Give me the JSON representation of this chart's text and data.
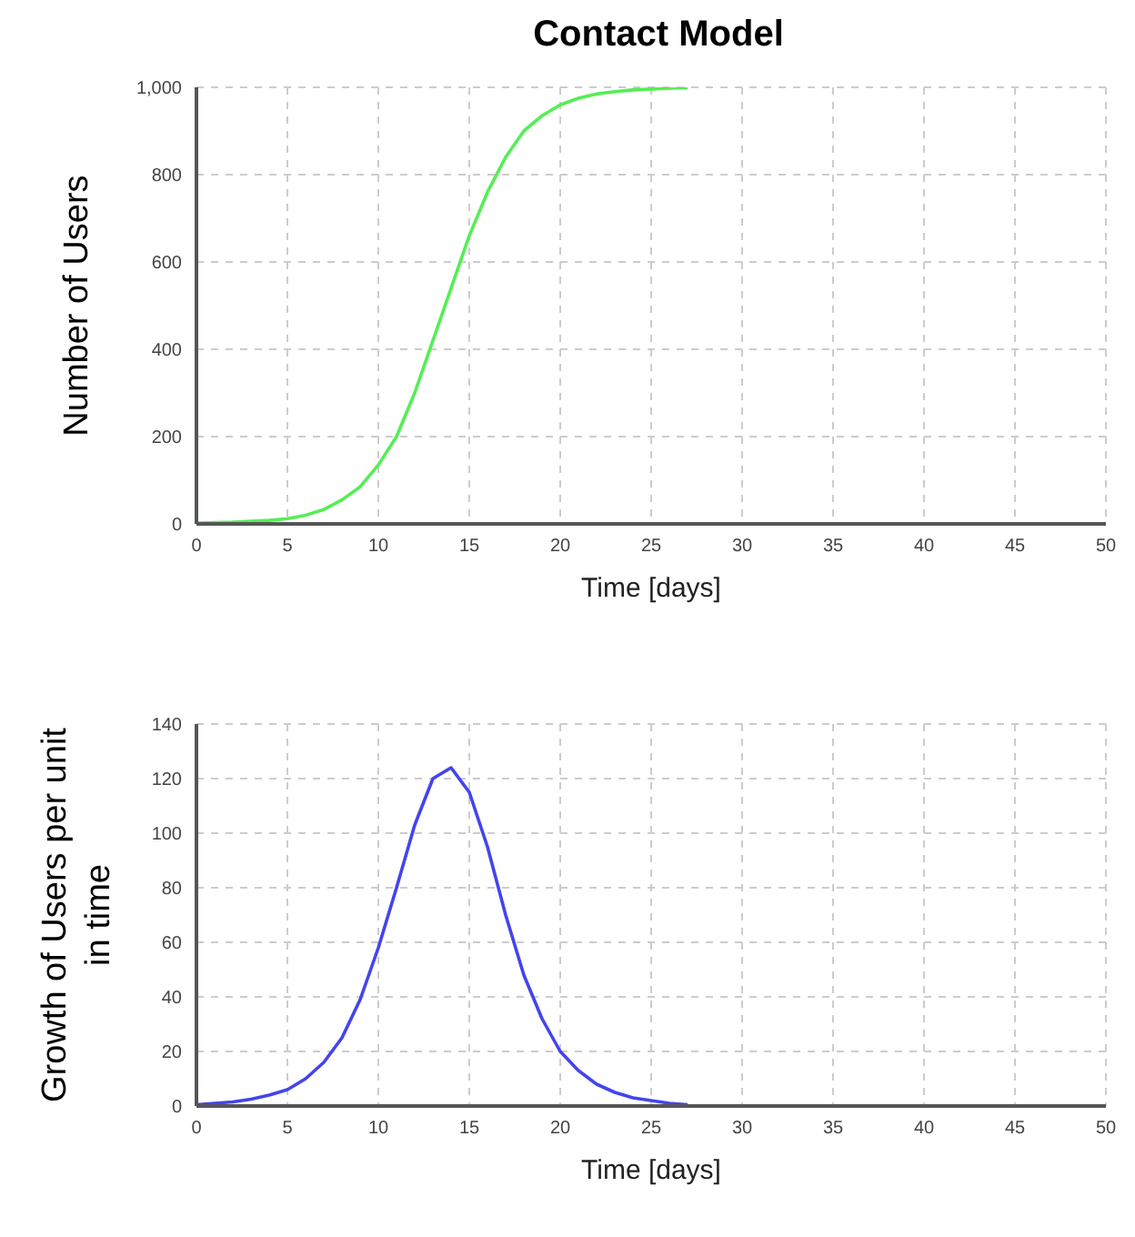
{
  "chart_data": [
    {
      "type": "line",
      "title": "Contact Model",
      "xlabel": "Time [days]",
      "ylabel": "Number of Users",
      "x": [
        0,
        1,
        2,
        3,
        4,
        5,
        6,
        7,
        8,
        9,
        10,
        11,
        12,
        13,
        14,
        15,
        16,
        17,
        18,
        19,
        20,
        21,
        22,
        23,
        24,
        25,
        26,
        27
      ],
      "series": [
        {
          "color": "#55ee55",
          "values": [
            2,
            3,
            4,
            6,
            8,
            12,
            20,
            33,
            55,
            85,
            135,
            200,
            300,
            420,
            540,
            660,
            760,
            840,
            900,
            935,
            960,
            975,
            985,
            990,
            994,
            996,
            998,
            999
          ]
        }
      ],
      "xlim": [
        0,
        50
      ],
      "xticks": [
        0,
        5,
        10,
        15,
        20,
        25,
        30,
        35,
        40,
        45,
        50
      ],
      "ylim": [
        0,
        1000
      ],
      "yticks": [
        0,
        200,
        400,
        600,
        800,
        {
          "value": 1000,
          "label": "1,000"
        }
      ],
      "grid": true,
      "legend": false,
      "marker": "none",
      "line_style": "solid"
    },
    {
      "type": "line",
      "xlabel": "Time [days]",
      "ylabel": "Growth of Users per unit in time",
      "x": [
        0,
        1,
        2,
        3,
        4,
        5,
        6,
        7,
        8,
        9,
        10,
        11,
        12,
        13,
        14,
        15,
        16,
        17,
        18,
        19,
        20,
        21,
        22,
        23,
        24,
        25,
        26,
        27
      ],
      "series": [
        {
          "color": "#4444ee",
          "values": [
            0.5,
            1,
            1.5,
            2.5,
            4,
            6,
            10,
            16,
            25,
            39,
            58,
            80,
            103,
            120,
            124,
            115,
            95,
            70,
            48,
            32,
            20,
            13,
            8,
            5,
            3,
            2,
            1,
            0.5
          ]
        }
      ],
      "xlim": [
        0,
        50
      ],
      "xticks": [
        0,
        5,
        10,
        15,
        20,
        25,
        30,
        35,
        40,
        45,
        50
      ],
      "ylim": [
        0,
        140
      ],
      "yticks": [
        0,
        20,
        40,
        60,
        80,
        100,
        120,
        140
      ],
      "grid": true,
      "legend": false,
      "marker": "none",
      "line_style": "solid"
    }
  ]
}
